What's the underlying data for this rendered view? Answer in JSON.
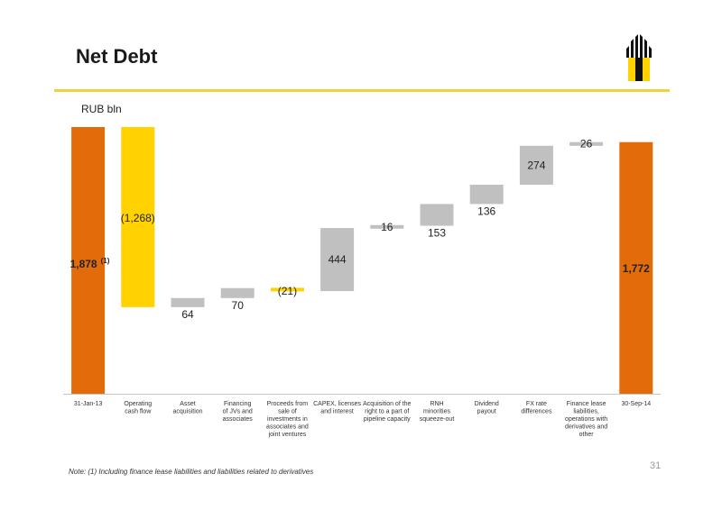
{
  "header": {
    "title": "Net Debt",
    "unit": "RUB bln"
  },
  "footer": {
    "note": "Note:  (1) Including finance lease liabilities and liabilities related to derivatives",
    "page_number": "31"
  },
  "colors": {
    "total": "#e36c0a",
    "negative": "#ffd200",
    "positive": "#c0c0c0",
    "accent_rule": "#f2d23a"
  },
  "chart_data": {
    "type": "bar",
    "subtype": "waterfall",
    "title": "Net Debt",
    "ylabel": "RUB bln",
    "categories": [
      "31-Jan-13",
      "Operating cash flow",
      "Asset acquisition",
      "Financing of JVs and associates",
      "Proceeds from sale of investments in associates and joint ventures",
      "CAPEX, licenses and interest",
      "Acquisition of the right to a part of pipeline capacity",
      "RNH minorities squeeze-out",
      "Dividend payout",
      "FX rate differences",
      "Finance lease liabilities, operations with derivatives and other",
      "30-Sep-14"
    ],
    "category_lines": [
      [
        "31-Jan-13"
      ],
      [
        "Operating",
        "cash flow"
      ],
      [
        "Asset",
        "acquisition"
      ],
      [
        "Financing",
        "of JVs and",
        "associates"
      ],
      [
        "Proceeds from",
        "sale of",
        "investments in",
        "associates and",
        "joint ventures"
      ],
      [
        "CAPEX, licenses",
        "and interest"
      ],
      [
        "Acquisition of the",
        "right to a part of",
        "pipeline capacity"
      ],
      [
        "RNH",
        "minorities",
        "squeeze-out"
      ],
      [
        "Dividend",
        "payout"
      ],
      [
        "FX rate",
        "differences"
      ],
      [
        "Finance lease",
        "liabilities,",
        "operations with",
        "derivatives and",
        "other"
      ],
      [
        "30-Sep-14"
      ]
    ],
    "values": [
      1878,
      -1268,
      64,
      70,
      -21,
      444,
      16,
      153,
      136,
      274,
      26,
      1772
    ],
    "kinds": [
      "total",
      "delta",
      "delta",
      "delta",
      "delta",
      "delta",
      "delta",
      "delta",
      "delta",
      "delta",
      "delta",
      "total"
    ],
    "data_labels": [
      "1,878",
      "(1,268)",
      "64",
      "70",
      "(21)",
      "444",
      "16",
      "153",
      "136",
      "274",
      "26",
      "1,772"
    ],
    "footnote_marks": [
      "(1)",
      "",
      "",
      "",
      "",
      "",
      "",
      "",
      "",
      "",
      "",
      ""
    ],
    "ylim": [
      0,
      1878
    ],
    "grid": false,
    "legend": "none"
  }
}
